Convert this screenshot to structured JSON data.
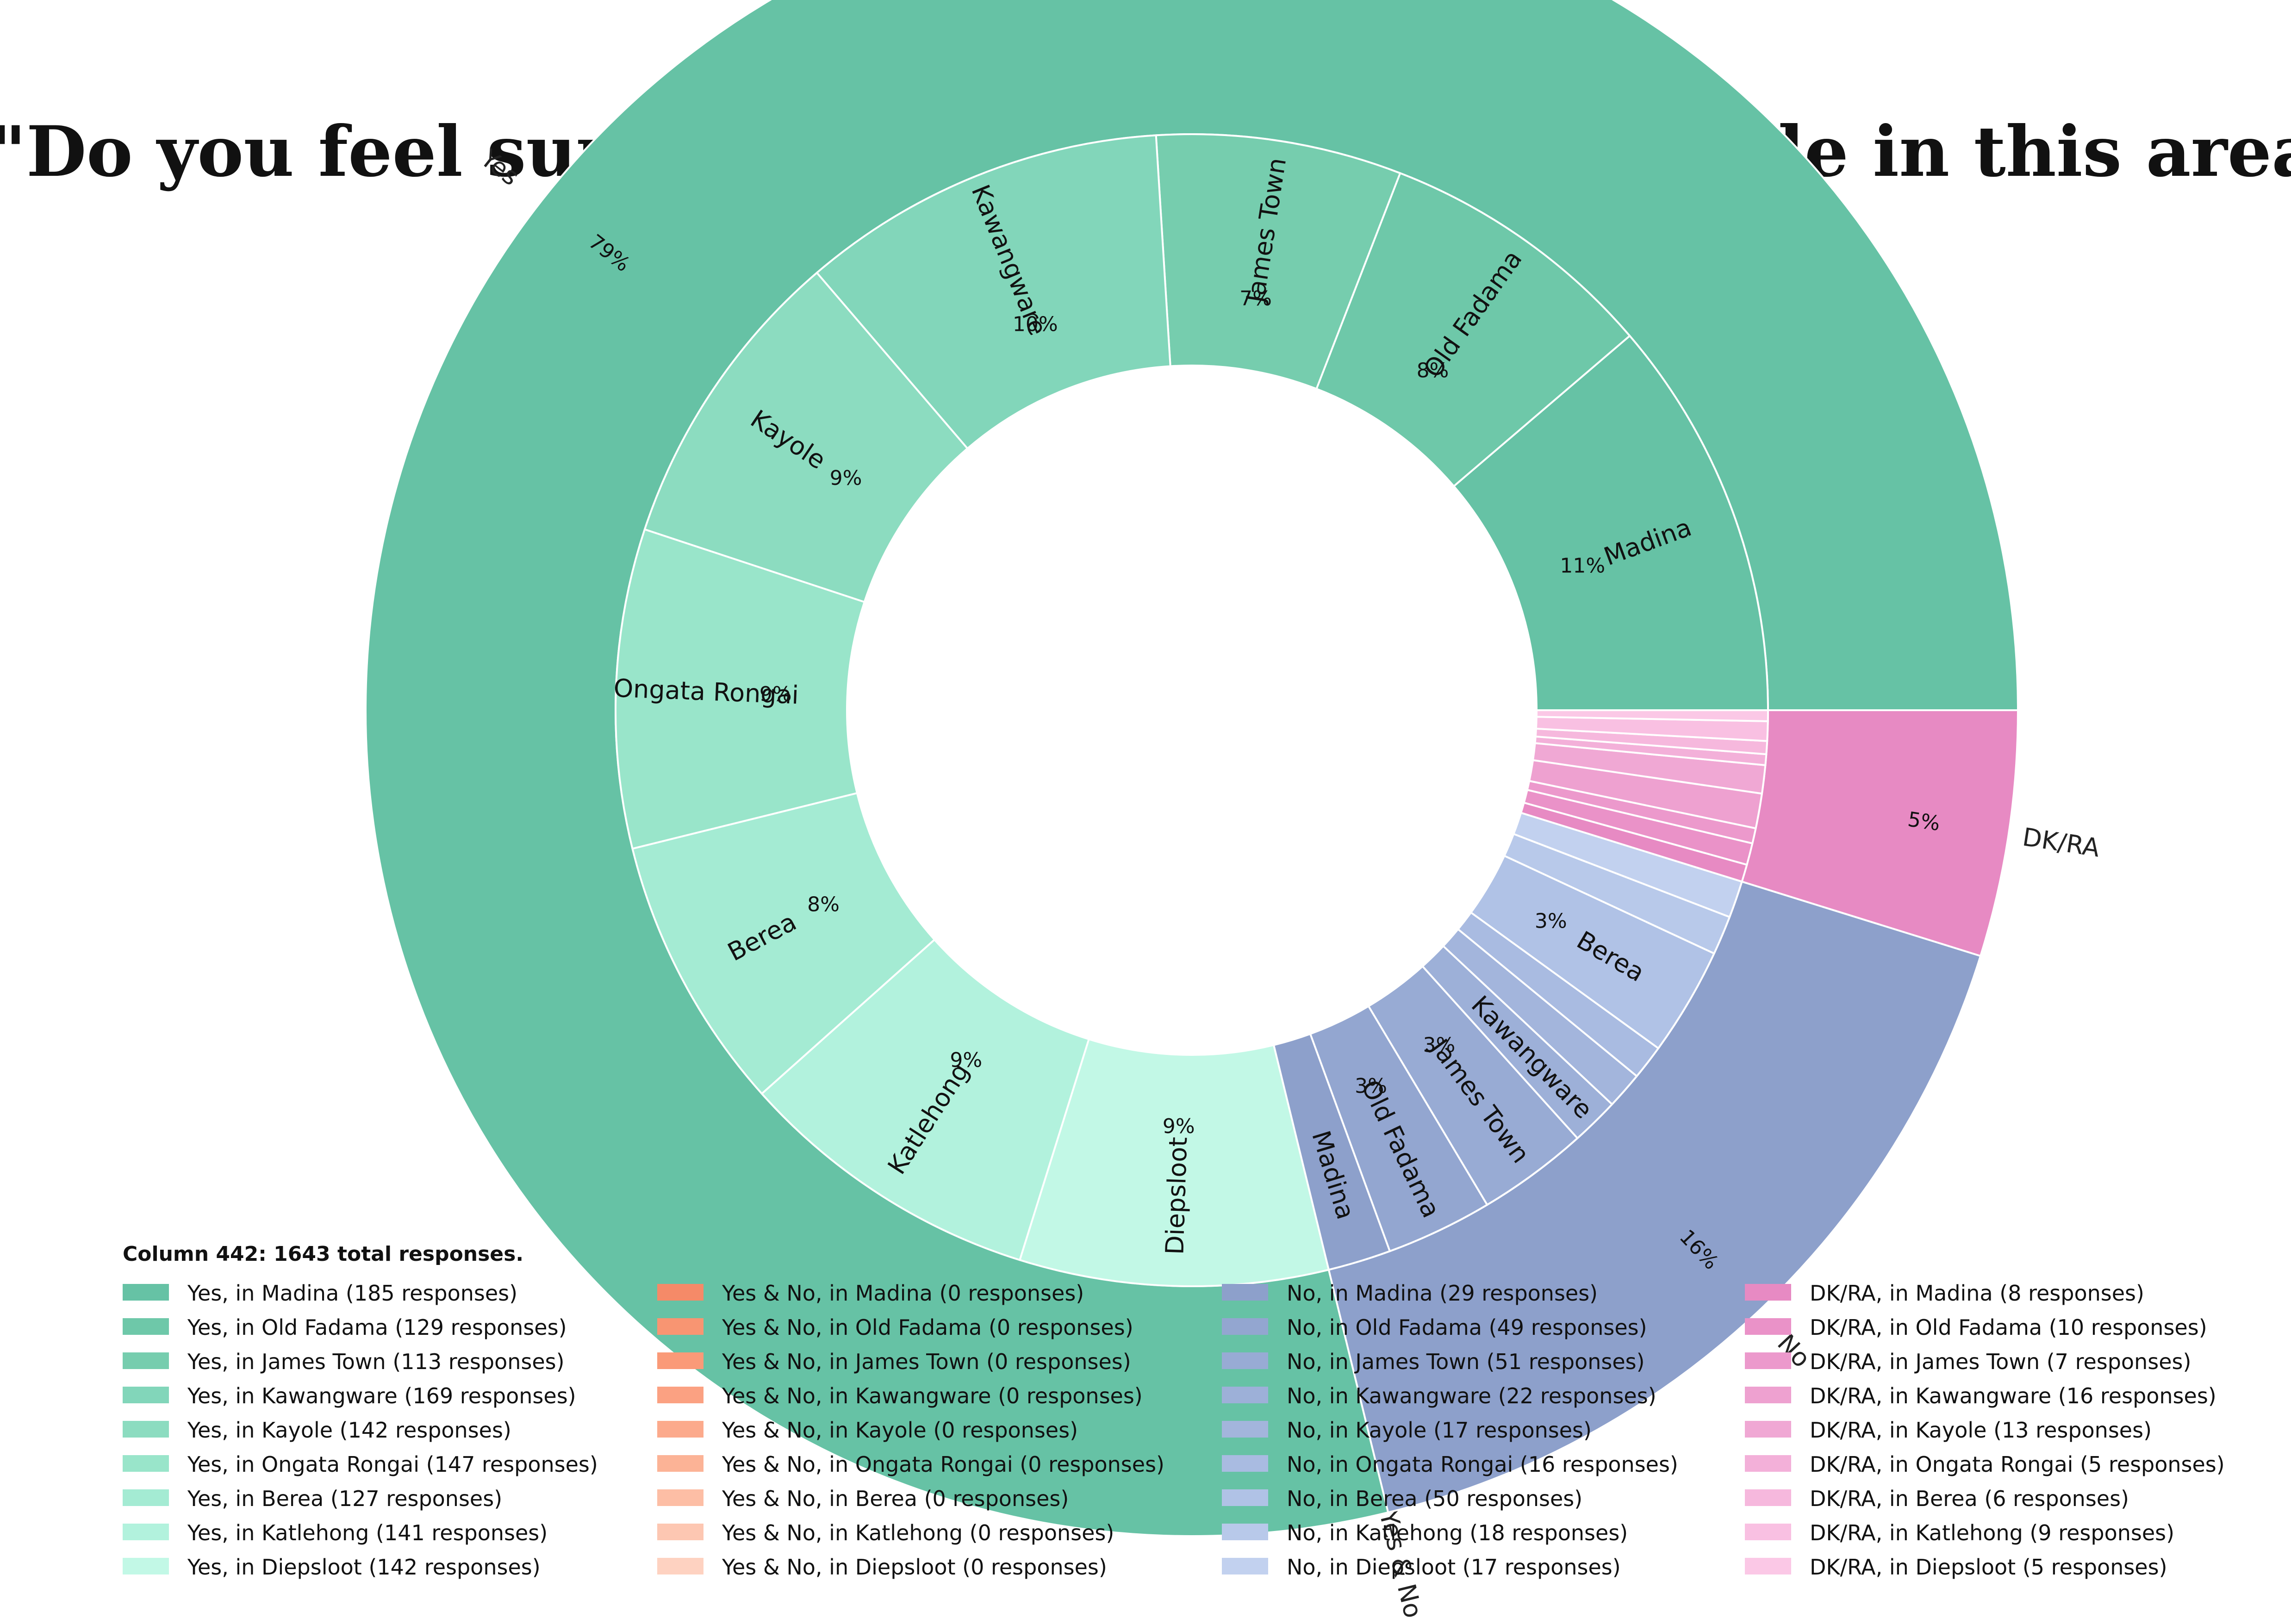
{
  "chart_data": {
    "type": "pie",
    "subtype": "nested-donut",
    "title": "\"Do you feel supported and respected by people in this area?\"",
    "legend_title": "Column 442: 1643 total responses.",
    "total_responses": 1643,
    "legend_placement": "bottom",
    "categories": [
      {
        "name": "Yes",
        "percent_label": "79%",
        "color": "#66c2a5",
        "items": [
          {
            "location": "Madina",
            "responses": 185,
            "percent_label": "11%",
            "color": "#66c2a5",
            "legend": "Yes, in Madina (185 responses)"
          },
          {
            "location": "Old Fadama",
            "responses": 129,
            "percent_label": "8%",
            "color": "#6ec8a9",
            "legend": "Yes, in Old Fadama (129 responses)"
          },
          {
            "location": "James Town",
            "responses": 113,
            "percent_label": "7%",
            "color": "#76cdae",
            "legend": "Yes, in James Town (113 responses)"
          },
          {
            "location": "Kawangware",
            "responses": 169,
            "percent_label": "10%",
            "color": "#82d6ba",
            "legend": "Yes, in Kawangware (169 responses)"
          },
          {
            "location": "Kayole",
            "responses": 142,
            "percent_label": "9%",
            "color": "#8cdcc0",
            "legend": "Yes, in Kayole (142 responses)"
          },
          {
            "location": "Ongata Rongai",
            "responses": 147,
            "percent_label": "9%",
            "color": "#99e5ca",
            "legend": "Yes, in Ongata Rongai (147 responses)"
          },
          {
            "location": "Berea",
            "responses": 127,
            "percent_label": "8%",
            "color": "#a4ebd3",
            "legend": "Yes, in Berea (127 responses)"
          },
          {
            "location": "Katlehong",
            "responses": 141,
            "percent_label": "9%",
            "color": "#b2f2dd",
            "legend": "Yes, in Katlehong (141 responses)"
          },
          {
            "location": "Diepsloot",
            "responses": 142,
            "percent_label": "9%",
            "color": "#c2f8e6",
            "legend": "Yes, in Diepsloot (142 responses)"
          }
        ]
      },
      {
        "name": "Yes & No",
        "percent_label": "",
        "color": "#fc8d62",
        "items": [
          {
            "location": "Madina",
            "responses": 0,
            "percent_label": "",
            "color": "#f58a68",
            "legend": "Yes & No, in Madina (0 responses)"
          },
          {
            "location": "Old Fadama",
            "responses": 0,
            "percent_label": "",
            "color": "#f89572",
            "legend": "Yes & No, in Old Fadama (0 responses)"
          },
          {
            "location": "James Town",
            "responses": 0,
            "percent_label": "",
            "color": "#fa9a78",
            "legend": "Yes & No, in James Town (0 responses)"
          },
          {
            "location": "Kawangware",
            "responses": 0,
            "percent_label": "",
            "color": "#fba182",
            "legend": "Yes & No, in Kawangware (0 responses)"
          },
          {
            "location": "Kayole",
            "responses": 0,
            "percent_label": "",
            "color": "#fcaa8c",
            "legend": "Yes & No, in Kayole (0 responses)"
          },
          {
            "location": "Ongata Rongai",
            "responses": 0,
            "percent_label": "",
            "color": "#fcb396",
            "legend": "Yes & No, in Ongata Rongai (0 responses)"
          },
          {
            "location": "Berea",
            "responses": 0,
            "percent_label": "",
            "color": "#fdbea5",
            "legend": "Yes & No, in Berea (0 responses)"
          },
          {
            "location": "Katlehong",
            "responses": 0,
            "percent_label": "",
            "color": "#fdc7b2",
            "legend": "Yes & No, in Katlehong (0 responses)"
          },
          {
            "location": "Diepsloot",
            "responses": 0,
            "percent_label": "",
            "color": "#fed2c1",
            "legend": "Yes & No, in Diepsloot (0 responses)"
          }
        ]
      },
      {
        "name": "No",
        "percent_label": "16%",
        "color": "#8da0cb",
        "items": [
          {
            "location": "Madina",
            "responses": 29,
            "percent_label": "",
            "color": "#8da0cb",
            "legend": "No, in Madina (29 responses)"
          },
          {
            "location": "Old Fadama",
            "responses": 49,
            "percent_label": "3%",
            "color": "#93a6d0",
            "legend": "No, in Old Fadama (49 responses)"
          },
          {
            "location": "James Town",
            "responses": 51,
            "percent_label": "3%",
            "color": "#98abd4",
            "legend": "No, in James Town (51 responses)"
          },
          {
            "location": "Kawangware",
            "responses": 22,
            "percent_label": "",
            "color": "#9db0d8",
            "legend": "No, in Kawangware (22 responses)"
          },
          {
            "location": "Kayole",
            "responses": 17,
            "percent_label": "",
            "color": "#a3b5dc",
            "legend": "No, in Kayole (17 responses)"
          },
          {
            "location": "Ongata Rongai",
            "responses": 16,
            "percent_label": "",
            "color": "#a9bbe1",
            "legend": "No, in Ongata Rongai (16 responses)"
          },
          {
            "location": "Berea",
            "responses": 50,
            "percent_label": "3%",
            "color": "#b0c2e6",
            "legend": "No, in Berea (50 responses)"
          },
          {
            "location": "Katlehong",
            "responses": 18,
            "percent_label": "",
            "color": "#b8c9ea",
            "legend": "No, in Katlehong (18 responses)"
          },
          {
            "location": "Diepsloot",
            "responses": 17,
            "percent_label": "",
            "color": "#c2d1ef",
            "legend": "No, in Diepsloot (17 responses)"
          }
        ]
      },
      {
        "name": "DK/RA",
        "percent_label": "5%",
        "color": "#e78ac3",
        "items": [
          {
            "location": "Madina",
            "responses": 8,
            "percent_label": "",
            "color": "#e78ac3",
            "legend": "DK/RA, in Madina (8 responses)"
          },
          {
            "location": "Old Fadama",
            "responses": 10,
            "percent_label": "",
            "color": "#ea92c8",
            "legend": "DK/RA, in Old Fadama (10 responses)"
          },
          {
            "location": "James Town",
            "responses": 7,
            "percent_label": "",
            "color": "#ec99cc",
            "legend": "DK/RA, in James Town (7 responses)"
          },
          {
            "location": "Kawangware",
            "responses": 16,
            "percent_label": "",
            "color": "#eea1d0",
            "legend": "DK/RA, in Kawangware (16 responses)"
          },
          {
            "location": "Kayole",
            "responses": 13,
            "percent_label": "",
            "color": "#f0a8d4",
            "legend": "DK/RA, in Kayole (13 responses)"
          },
          {
            "location": "Ongata Rongai",
            "responses": 5,
            "percent_label": "",
            "color": "#f3b0d9",
            "legend": "DK/RA, in Ongata Rongai (5 responses)"
          },
          {
            "location": "Berea",
            "responses": 6,
            "percent_label": "",
            "color": "#f6b8dd",
            "legend": "DK/RA, in Berea (6 responses)"
          },
          {
            "location": "Katlehong",
            "responses": 9,
            "percent_label": "",
            "color": "#f9c0e2",
            "legend": "DK/RA, in Katlehong (9 responses)"
          },
          {
            "location": "Diepsloot",
            "responses": 5,
            "percent_label": "",
            "color": "#fbc8e6",
            "legend": "DK/RA, in Diepsloot (5 responses)"
          }
        ]
      }
    ]
  }
}
